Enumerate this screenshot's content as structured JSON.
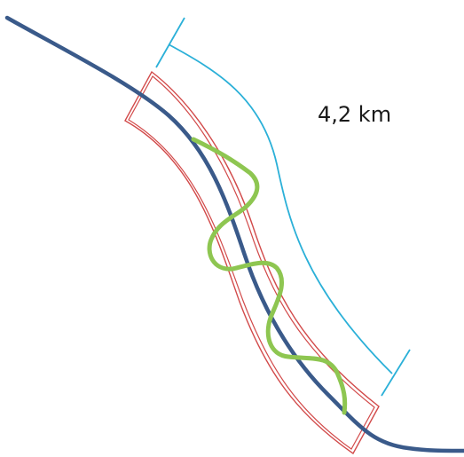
{
  "diagram": {
    "measurement_label": "4,2 km",
    "colors": {
      "road": "#3a5a8a",
      "corridor": "#d24a4a",
      "route": "#8ec651",
      "dimension": "#2bb0d8",
      "background": "#ffffff",
      "text": "#1a1a1a"
    }
  }
}
